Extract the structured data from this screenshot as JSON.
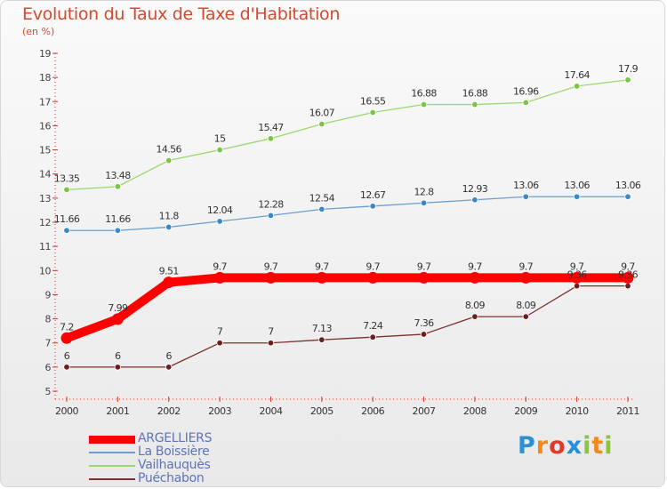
{
  "title": "Evolution du Taux de Taxe d'Habitation",
  "subtitle": "(en %)",
  "logo": {
    "text": "Proxiti",
    "letters": [
      "P",
      "r",
      "o",
      "x",
      "i",
      "t",
      "i"
    ],
    "colors": [
      "#2a8fd6",
      "#f08a1c",
      "#e23a2a",
      "#2a8fd6",
      "#8cc43c",
      "#f08a1c",
      "#8cc43c"
    ]
  },
  "chart_data": {
    "type": "line",
    "title": "Evolution du Taux de Taxe d'Habitation",
    "xlabel": "",
    "ylabel": "(en %)",
    "ylim": [
      5,
      19
    ],
    "yticks": [
      5,
      6,
      7,
      8,
      9,
      10,
      11,
      12,
      13,
      14,
      15,
      16,
      17,
      18,
      19
    ],
    "x": [
      "2000",
      "2001",
      "2002",
      "2003",
      "2004",
      "2005",
      "2006",
      "2007",
      "2008",
      "2009",
      "2010",
      "2011"
    ],
    "grid": false,
    "legend_position": "bottom-left",
    "series": [
      {
        "name": "ARGELLIERS",
        "color": "#ff0000",
        "highlight": true,
        "values": [
          7.2,
          7.99,
          9.51,
          9.7,
          9.7,
          9.7,
          9.7,
          9.7,
          9.7,
          9.7,
          9.7,
          9.7
        ],
        "labels": [
          "7.2",
          "7.99",
          "9.51",
          "9.7",
          "9.7",
          "9.7",
          "9.7",
          "9.7",
          "9.7",
          "9.7",
          "9.7",
          "9.7"
        ]
      },
      {
        "name": "La Boissière",
        "color": "#6a9ed0",
        "marker_color": "#3b88c8",
        "values": [
          11.66,
          11.66,
          11.8,
          12.04,
          12.28,
          12.54,
          12.67,
          12.8,
          12.93,
          13.06,
          13.06,
          13.06
        ],
        "labels": [
          "11.66",
          "11.66",
          "11.8",
          "12.04",
          "12.28",
          "12.54",
          "12.67",
          "12.8",
          "12.93",
          "13.06",
          "13.06",
          "13.06"
        ]
      },
      {
        "name": "Vailhauquès",
        "color": "#9cd870",
        "marker_color": "#7dc443",
        "values": [
          13.35,
          13.48,
          14.56,
          15,
          15.47,
          16.07,
          16.55,
          16.88,
          16.88,
          16.96,
          17.64,
          17.9
        ],
        "labels": [
          "13.35",
          "13.48",
          "14.56",
          "15",
          "15.47",
          "16.07",
          "16.55",
          "16.88",
          "16.88",
          "16.96",
          "17.64",
          "17.9"
        ]
      },
      {
        "name": "Puéchabon",
        "color": "#7a3030",
        "marker_color": "#6a1e1e",
        "values": [
          6,
          6,
          6,
          7,
          7,
          7.13,
          7.24,
          7.36,
          8.09,
          8.09,
          9.36,
          9.36
        ],
        "labels": [
          "6",
          "6",
          "6",
          "7",
          "7",
          "7.13",
          "7.24",
          "7.36",
          "8.09",
          "8.09",
          "9.36",
          "9.36"
        ]
      }
    ]
  }
}
